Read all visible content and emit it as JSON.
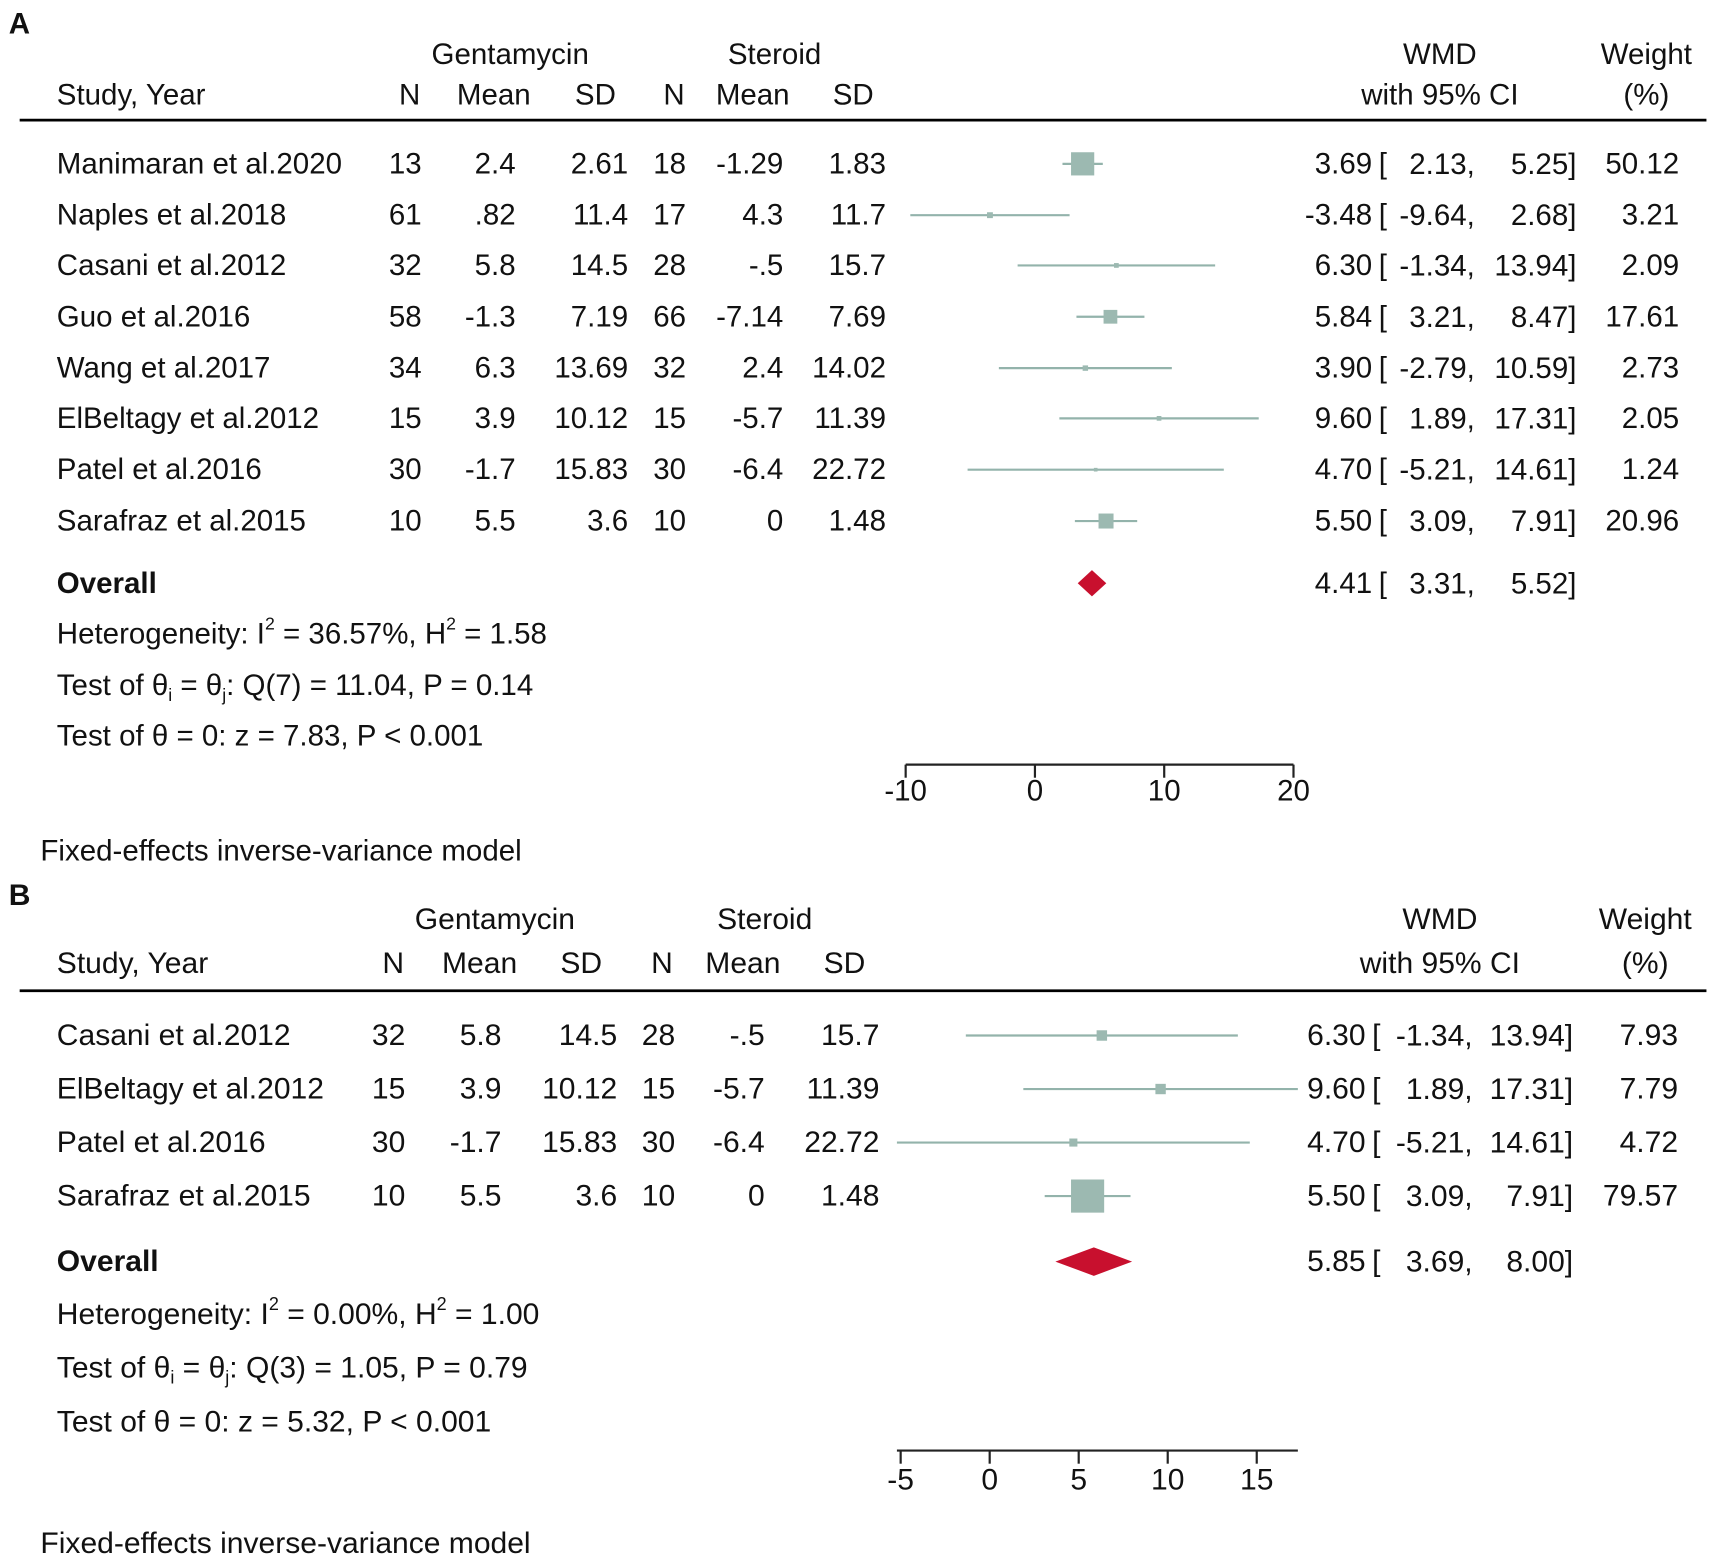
{
  "colors": {
    "box": "#9cb9b1",
    "ci_line": "#93b3ab",
    "diamond": "#c8102e",
    "axis": "#222222",
    "text": "#111111"
  },
  "chart_data": [
    {
      "type": "forest",
      "panel_label": "A",
      "header": {
        "group1": "Gentamycin",
        "group2": "Steroid",
        "study": "Study, Year",
        "n": "N",
        "mean": "Mean",
        "sd": "SD",
        "effect_top": "WMD",
        "effect_bottom": "with 95% CI",
        "weight_top": "Weight",
        "weight_bottom": "(%)"
      },
      "ci_format": {
        "open": "[",
        "sep": ",",
        "close": "]"
      },
      "studies": [
        {
          "study": "Manimaran et al.2020",
          "n1": "13",
          "mean1": "2.4",
          "sd1": "2.61",
          "n2": "18",
          "mean2": "-1.29",
          "sd2": "1.83",
          "wmd": "3.69",
          "ci_low": "2.13",
          "ci_high": "5.25",
          "weight": "50.12"
        },
        {
          "study": "Naples et al.2018",
          "n1": "61",
          "mean1": ".82",
          "sd1": "11.4",
          "n2": "17",
          "mean2": "4.3",
          "sd2": "11.7",
          "wmd": "-3.48",
          "ci_low": "-9.64",
          "ci_high": "2.68",
          "weight": "3.21"
        },
        {
          "study": "Casani et al.2012",
          "n1": "32",
          "mean1": "5.8",
          "sd1": "14.5",
          "n2": "28",
          "mean2": "-.5",
          "sd2": "15.7",
          "wmd": "6.30",
          "ci_low": "-1.34",
          "ci_high": "13.94",
          "weight": "2.09"
        },
        {
          "study": "Guo et al.2016",
          "n1": "58",
          "mean1": "-1.3",
          "sd1": "7.19",
          "n2": "66",
          "mean2": "-7.14",
          "sd2": "7.69",
          "wmd": "5.84",
          "ci_low": "3.21",
          "ci_high": "8.47",
          "weight": "17.61"
        },
        {
          "study": "Wang et al.2017",
          "n1": "34",
          "mean1": "6.3",
          "sd1": "13.69",
          "n2": "32",
          "mean2": "2.4",
          "sd2": "14.02",
          "wmd": "3.90",
          "ci_low": "-2.79",
          "ci_high": "10.59",
          "weight": "2.73"
        },
        {
          "study": "ElBeltagy et al.2012",
          "n1": "15",
          "mean1": "3.9",
          "sd1": "10.12",
          "n2": "15",
          "mean2": "-5.7",
          "sd2": "11.39",
          "wmd": "9.60",
          "ci_low": "1.89",
          "ci_high": "17.31",
          "weight": "2.05"
        },
        {
          "study": "Patel et al.2016",
          "n1": "30",
          "mean1": "-1.7",
          "sd1": "15.83",
          "n2": "30",
          "mean2": "-6.4",
          "sd2": "22.72",
          "wmd": "4.70",
          "ci_low": "-5.21",
          "ci_high": "14.61",
          "weight": "1.24"
        },
        {
          "study": "Sarafraz et al.2015",
          "n1": "10",
          "mean1": "5.5",
          "sd1": "3.6",
          "n2": "10",
          "mean2": "0",
          "sd2": "1.48",
          "wmd": "5.50",
          "ci_low": "3.09",
          "ci_high": "7.91",
          "weight": "20.96"
        }
      ],
      "overall": {
        "label": "Overall",
        "wmd": "4.41",
        "ci_low": "3.31",
        "ci_high": "5.52"
      },
      "stats": {
        "heterogeneity": {
          "text1": "Heterogeneity: I",
          "sup1": "2",
          "text2": " = 36.57%, H",
          "sup2": "2",
          "text3": " = 1.58"
        },
        "q_test": {
          "text1": "Test of θ",
          "sub1": "i",
          "text2": " = θ",
          "sub2": "j",
          "text3": ": Q(7) = 11.04, P = 0.14"
        },
        "z_test": "Test of θ = 0: z = 7.83, P < 0.001"
      },
      "xaxis": {
        "xlim": [
          -10,
          20
        ],
        "ticks": [
          -10,
          0,
          10,
          20
        ],
        "tick_labels": [
          "-10",
          "0",
          "10",
          "20"
        ]
      },
      "model": "Fixed-effects inverse-variance model"
    },
    {
      "type": "forest",
      "panel_label": "B",
      "header": {
        "group1": "Gentamycin",
        "group2": "Steroid",
        "study": "Study, Year",
        "n": "N",
        "mean": "Mean",
        "sd": "SD",
        "effect_top": "WMD",
        "effect_bottom": "with 95% CI",
        "weight_top": "Weight",
        "weight_bottom": "(%)"
      },
      "ci_format": {
        "open": "[",
        "sep": ",",
        "close": "]"
      },
      "studies": [
        {
          "study": "Casani et al.2012",
          "n1": "32",
          "mean1": "5.8",
          "sd1": "14.5",
          "n2": "28",
          "mean2": "-.5",
          "sd2": "15.7",
          "wmd": "6.30",
          "ci_low": "-1.34",
          "ci_high": "13.94",
          "weight": "7.93"
        },
        {
          "study": "ElBeltagy et al.2012",
          "n1": "15",
          "mean1": "3.9",
          "sd1": "10.12",
          "n2": "15",
          "mean2": "-5.7",
          "sd2": "11.39",
          "wmd": "9.60",
          "ci_low": "1.89",
          "ci_high": "17.31",
          "weight": "7.79"
        },
        {
          "study": "Patel et al.2016",
          "n1": "30",
          "mean1": "-1.7",
          "sd1": "15.83",
          "n2": "30",
          "mean2": "-6.4",
          "sd2": "22.72",
          "wmd": "4.70",
          "ci_low": "-5.21",
          "ci_high": "14.61",
          "weight": "4.72"
        },
        {
          "study": "Sarafraz et al.2015",
          "n1": "10",
          "mean1": "5.5",
          "sd1": "3.6",
          "n2": "10",
          "mean2": "0",
          "sd2": "1.48",
          "wmd": "5.50",
          "ci_low": "3.09",
          "ci_high": "7.91",
          "weight": "79.57"
        }
      ],
      "overall": {
        "label": "Overall",
        "wmd": "5.85",
        "ci_low": "3.69",
        "ci_high": "8.00"
      },
      "stats": {
        "heterogeneity": {
          "text1": "Heterogeneity: I",
          "sup1": "2",
          "text2": " = 0.00%, H",
          "sup2": "2",
          "text3": " = 1.00"
        },
        "q_test": {
          "text1": "Test of θ",
          "sub1": "i",
          "text2": " = θ",
          "sub2": "j",
          "text3": ": Q(3) = 1.05, P = 0.79"
        },
        "z_test": "Test of θ = 0: z = 5.32, P < 0.001"
      },
      "xaxis": {
        "xlim": [
          -5.21,
          17.31
        ],
        "ticks": [
          -5,
          0,
          5,
          10,
          15
        ],
        "tick_labels": [
          "-5",
          "0",
          "5",
          "10",
          "15"
        ]
      },
      "model": "Fixed-effects inverse-variance model"
    }
  ]
}
